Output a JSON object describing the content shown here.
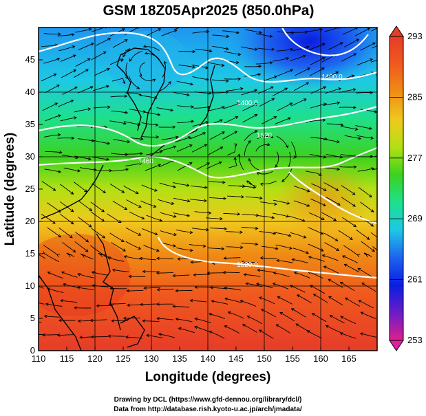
{
  "title": "GSM 18Z05Apr2025 (850.0hPa)",
  "xlabel": "Longitude (degrees)",
  "ylabel": "Latitude  (degrees)",
  "credits": {
    "line1": "Drawing by DCL (https://www.gfd-dennou.org/library/dcl/)",
    "line2": "Data from http://database.rish.kyoto-u.ac.jp/arch/jmadata/"
  },
  "chart_data": {
    "type": "heatmap",
    "xlim": [
      110,
      170
    ],
    "ylim": [
      0,
      50
    ],
    "x_ticks": [
      110,
      115,
      120,
      125,
      130,
      135,
      140,
      145,
      150,
      155,
      160,
      165
    ],
    "y_ticks": [
      0,
      5,
      10,
      15,
      20,
      25,
      30,
      35,
      40,
      45
    ],
    "grid": true,
    "colorbar": {
      "min": 253,
      "max": 293,
      "labels": [
        293,
        285,
        277,
        269,
        261,
        253
      ],
      "colors": [
        "#e0208c",
        "#6a1cc8",
        "#0a1ee0",
        "#1e64f0",
        "#1ec8e6",
        "#1ee08c",
        "#3cd21e",
        "#b4e014",
        "#f0c81e",
        "#f08c14",
        "#f05a1e",
        "#e63c28"
      ]
    },
    "contour_labels": [
      {
        "text": "1400.0",
        "lon": 147,
        "lat": 38
      },
      {
        "text": "1400.0",
        "lon": 162,
        "lat": 42
      },
      {
        "text": "1520.0",
        "lon": 147,
        "lat": 13
      },
      {
        "text": "1460",
        "lon": 129,
        "lat": 29
      },
      {
        "text": "1520",
        "lon": 150,
        "lat": 33
      }
    ]
  }
}
